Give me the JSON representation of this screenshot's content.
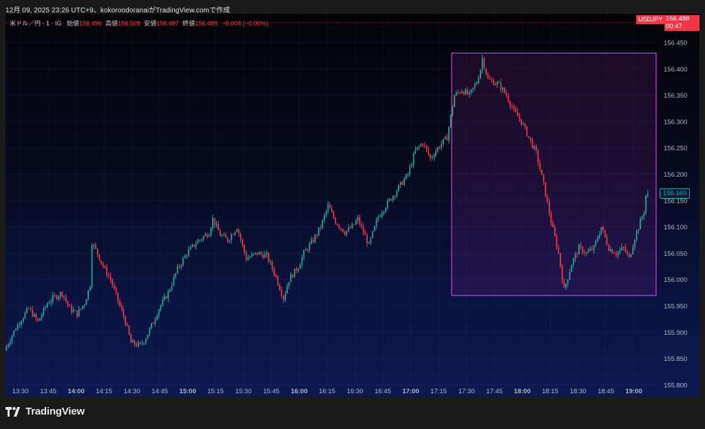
{
  "header": {
    "caption": "12月 09, 2025 23:26 UTC+9、kokoroodoranaiがTradingView.comで作成"
  },
  "legend": {
    "symbol": "米ドル／円 · 1 · IG",
    "open_label": "始値",
    "open_value": "156.496",
    "high_label": "高値",
    "high_value": "156.509",
    "low_label": "安値",
    "low_value": "156.487",
    "close_label": "終値",
    "close_value": "156.488",
    "change": "−0.004 (−0.00%)"
  },
  "price_tag": {
    "symbol": "USDJPY",
    "price": "156.488",
    "countdown": "00:47"
  },
  "marker_tag": {
    "price": "156.160"
  },
  "footer": {
    "brand": "TradingView"
  },
  "colors": {
    "up": "#26a69a",
    "down": "#f23645",
    "box_border": "#b33ac2",
    "box_fill": "rgba(150,40,170,0.16)",
    "axis_text": "#b2b5be"
  },
  "chart_data": {
    "type": "candlestick",
    "title": "",
    "xlabel": "",
    "ylabel": "",
    "ylim": [
      155.8,
      156.48
    ],
    "xlim": [
      "13:22",
      "19:12"
    ],
    "y_ticks": [
      "155.800",
      "155.850",
      "155.900",
      "155.950",
      "156.000",
      "156.050",
      "156.100",
      "156.150",
      "156.200",
      "156.250",
      "156.300",
      "156.350",
      "156.400",
      "156.450"
    ],
    "x_ticks": [
      {
        "label": "13:30",
        "t": "13:30",
        "bold": false
      },
      {
        "label": "13:45",
        "t": "13:45",
        "bold": false
      },
      {
        "label": "14:00",
        "t": "14:00",
        "bold": true
      },
      {
        "label": "14:15",
        "t": "14:15",
        "bold": false
      },
      {
        "label": "14:30",
        "t": "14:30",
        "bold": false
      },
      {
        "label": "14:45",
        "t": "14:45",
        "bold": false
      },
      {
        "label": "15:00",
        "t": "15:00",
        "bold": true
      },
      {
        "label": "15:15",
        "t": "15:15",
        "bold": false
      },
      {
        "label": "15:30",
        "t": "15:30",
        "bold": false
      },
      {
        "label": "15:45",
        "t": "15:45",
        "bold": false
      },
      {
        "label": "16:00",
        "t": "16:00",
        "bold": true
      },
      {
        "label": "16:15",
        "t": "16:15",
        "bold": false
      },
      {
        "label": "16:30",
        "t": "16:30",
        "bold": false
      },
      {
        "label": "16:45",
        "t": "16:45",
        "bold": false
      },
      {
        "label": "17:00",
        "t": "17:00",
        "bold": true
      },
      {
        "label": "17:15",
        "t": "17:15",
        "bold": false
      },
      {
        "label": "17:30",
        "t": "17:30",
        "bold": false
      },
      {
        "label": "17:45",
        "t": "17:45",
        "bold": false
      },
      {
        "label": "18:00",
        "t": "18:00",
        "bold": true
      },
      {
        "label": "18:15",
        "t": "18:15",
        "bold": false
      },
      {
        "label": "18:30",
        "t": "18:30",
        "bold": false
      },
      {
        "label": "18:45",
        "t": "18:45",
        "bold": false
      },
      {
        "label": "19:00",
        "t": "19:00",
        "bold": true
      }
    ],
    "price_path": [
      [
        "13:22",
        155.865
      ],
      [
        "13:26",
        155.895
      ],
      [
        "13:30",
        155.92
      ],
      [
        "13:35",
        155.945
      ],
      [
        "13:40",
        155.92
      ],
      [
        "13:45",
        155.955
      ],
      [
        "13:48",
        155.965
      ],
      [
        "13:53",
        155.975
      ],
      [
        "13:57",
        155.945
      ],
      [
        "14:01",
        155.935
      ],
      [
        "14:05",
        155.955
      ],
      [
        "14:08",
        155.99
      ],
      [
        "14:09",
        156.07
      ],
      [
        "14:12",
        156.05
      ],
      [
        "14:15",
        156.025
      ],
      [
        "14:19",
        156.0
      ],
      [
        "14:23",
        155.96
      ],
      [
        "14:27",
        155.92
      ],
      [
        "14:30",
        155.88
      ],
      [
        "14:35",
        155.875
      ],
      [
        "14:38",
        155.89
      ],
      [
        "14:42",
        155.92
      ],
      [
        "14:45",
        155.945
      ],
      [
        "14:50",
        155.975
      ],
      [
        "14:55",
        156.02
      ],
      [
        "15:00",
        156.05
      ],
      [
        "15:05",
        156.07
      ],
      [
        "15:12",
        156.09
      ],
      [
        "15:14",
        156.115
      ],
      [
        "15:18",
        156.085
      ],
      [
        "15:22",
        156.075
      ],
      [
        "15:27",
        156.1
      ],
      [
        "15:32",
        156.04
      ],
      [
        "15:38",
        156.05
      ],
      [
        "15:43",
        156.045
      ],
      [
        "15:48",
        156.005
      ],
      [
        "15:52",
        155.965
      ],
      [
        "15:55",
        156.0
      ],
      [
        "16:00",
        156.025
      ],
      [
        "16:03",
        156.05
      ],
      [
        "16:08",
        156.075
      ],
      [
        "16:12",
        156.1
      ],
      [
        "16:16",
        156.14
      ],
      [
        "16:20",
        156.11
      ],
      [
        "16:25",
        156.09
      ],
      [
        "16:29",
        156.1
      ],
      [
        "16:32",
        156.115
      ],
      [
        "16:38",
        156.065
      ],
      [
        "16:43",
        156.12
      ],
      [
        "16:48",
        156.145
      ],
      [
        "16:52",
        156.165
      ],
      [
        "16:55",
        156.18
      ],
      [
        "16:59",
        156.2
      ],
      [
        "17:03",
        156.245
      ],
      [
        "17:07",
        156.26
      ],
      [
        "17:11",
        156.23
      ],
      [
        "17:15",
        156.25
      ],
      [
        "17:20",
        156.27
      ],
      [
        "17:24",
        156.35
      ],
      [
        "17:28",
        156.36
      ],
      [
        "17:32",
        156.35
      ],
      [
        "17:36",
        156.375
      ],
      [
        "17:38",
        156.4
      ],
      [
        "17:39",
        156.42
      ],
      [
        "17:42",
        156.38
      ],
      [
        "17:45",
        156.375
      ],
      [
        "17:48",
        156.37
      ],
      [
        "17:52",
        156.35
      ],
      [
        "17:56",
        156.32
      ],
      [
        "18:00",
        156.3
      ],
      [
        "18:04",
        156.27
      ],
      [
        "18:08",
        156.24
      ],
      [
        "18:12",
        156.18
      ],
      [
        "18:16",
        156.11
      ],
      [
        "18:20",
        156.05
      ],
      [
        "18:23",
        155.98
      ],
      [
        "18:27",
        156.03
      ],
      [
        "18:31",
        156.06
      ],
      [
        "18:35",
        156.05
      ],
      [
        "18:39",
        156.06
      ],
      [
        "18:43",
        156.1
      ],
      [
        "18:47",
        156.06
      ],
      [
        "18:51",
        156.05
      ],
      [
        "18:55",
        156.06
      ],
      [
        "18:58",
        156.04
      ],
      [
        "19:01",
        156.08
      ],
      [
        "19:04",
        156.11
      ],
      [
        "19:06",
        156.13
      ],
      [
        "19:07",
        156.16
      ]
    ],
    "highlight_box": {
      "t_start": "17:22",
      "t_end": "19:12",
      "p_top": 156.43,
      "p_bottom": 155.97
    }
  }
}
